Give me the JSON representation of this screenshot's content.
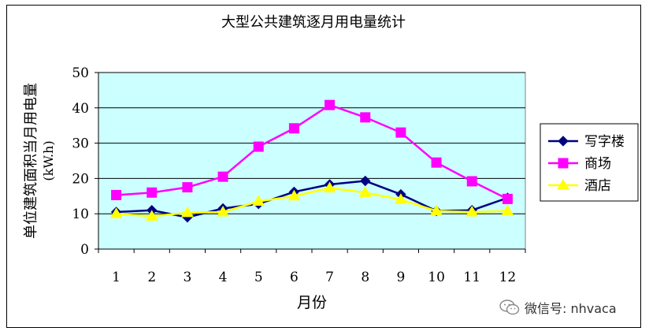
{
  "chart_data": {
    "type": "line",
    "title": "大型公共建筑逐月用电量统计",
    "xlabel": "月份",
    "ylabel": "单位建筑面积当月用电量",
    "ylabel_unit": "(kW.h)",
    "categories": [
      "1",
      "2",
      "3",
      "4",
      "5",
      "6",
      "7",
      "8",
      "9",
      "10",
      "11",
      "12"
    ],
    "ylim": [
      0,
      50
    ],
    "yticks": [
      0,
      10,
      20,
      30,
      40,
      50
    ],
    "grid": true,
    "plot_background": "#ccffff",
    "legend_position": "right",
    "series": [
      {
        "name": "写字楼",
        "color": "#000080",
        "marker": "diamond",
        "values": [
          10.5,
          11.0,
          9.0,
          11.5,
          12.8,
          16.2,
          18.3,
          19.3,
          15.5,
          10.8,
          11.0,
          14.5
        ]
      },
      {
        "name": "商场",
        "color": "#ff00ff",
        "marker": "square",
        "values": [
          15.3,
          16.0,
          17.5,
          20.5,
          29.0,
          34.2,
          40.8,
          37.3,
          33.0,
          24.5,
          19.2,
          14.2
        ]
      },
      {
        "name": "酒店",
        "color": "#ffff00",
        "marker": "triangle",
        "values": [
          10.0,
          9.3,
          10.3,
          10.5,
          13.5,
          15.0,
          17.3,
          16.0,
          14.0,
          10.8,
          10.5,
          10.8
        ]
      }
    ]
  },
  "watermark": {
    "text": "微信号: nhvaca",
    "icon": "wechat-icon"
  }
}
